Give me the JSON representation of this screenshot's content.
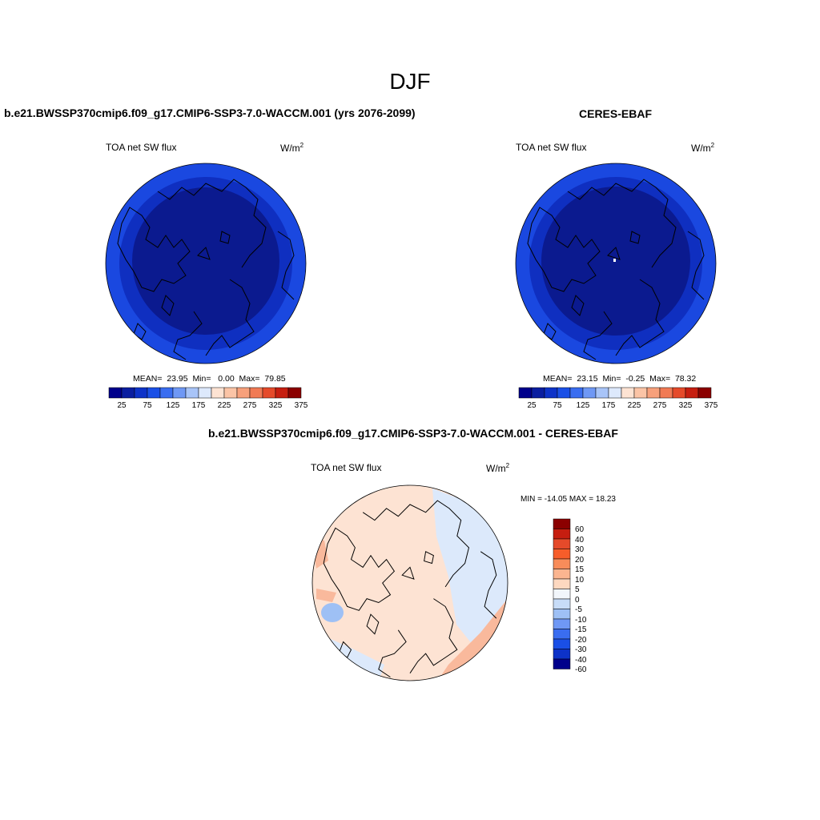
{
  "figure": {
    "title": "DJF"
  },
  "panels": [
    {
      "title": "b.e21.BWSSP370cmip6.f09_g17.CMIP6-SSP3-7.0-WACCM.001 (yrs 2076-2099)",
      "variable": "TOA net SW flux",
      "units": "W/m",
      "units_exp": "2",
      "stats": {
        "mean_label": "MEAN=",
        "mean": "23.95",
        "min_label": "Min=",
        "min": "0.00",
        "max_label": "Max=",
        "max": "79.85"
      }
    },
    {
      "title": "CERES-EBAF",
      "variable": "TOA net SW flux",
      "units": "W/m",
      "units_exp": "2",
      "stats": {
        "mean_label": "MEAN=",
        "mean": "23.15",
        "min_label": "Min=",
        "min": "-0.25",
        "max_label": "Max=",
        "max": "78.32"
      }
    },
    {
      "title": "b.e21.BWSSP370cmip6.f09_g17.CMIP6-SSP3-7.0-WACCM.001 - CERES-EBAF",
      "variable": "TOA net SW flux",
      "units": "W/m",
      "units_exp": "2",
      "stats_text": "MIN = -14.05 MAX =  18.23"
    }
  ],
  "colorbar_top": {
    "ticks": [
      "25",
      "75",
      "125",
      "175",
      "225",
      "275",
      "325",
      "375"
    ],
    "colors": [
      "#00008b",
      "#0a1ea0",
      "#0d32c8",
      "#1a4fe6",
      "#3a6df0",
      "#6f98f5",
      "#a8c4f8",
      "#dde9fc",
      "#fde3d3",
      "#fbc4a6",
      "#f7a07b",
      "#f17a54",
      "#e54a2a",
      "#c61e10",
      "#8b0000"
    ]
  },
  "colorbar_diff": {
    "labels": [
      "60",
      "40",
      "30",
      "20",
      "15",
      "10",
      "5",
      "0",
      "-5",
      "-10",
      "-15",
      "-20",
      "-30",
      "-40",
      "-60"
    ],
    "colors": [
      "#8b0000",
      "#c61e10",
      "#e54a2a",
      "#f75d2a",
      "#f88c5a",
      "#fbb590",
      "#fdd8c0",
      "#f2f6fb",
      "#c7dcf8",
      "#9ec0f5",
      "#6f98f5",
      "#3a6df0",
      "#1a4fe6",
      "#0d32c8",
      "#00008b"
    ]
  },
  "map_colors": {
    "deep": "#0b1a8f",
    "mid": "#0f2fc0",
    "outer": "#1a48e0",
    "diff_warm": "#fde3d3",
    "diff_cool": "#dce9fb",
    "diff_warmer": "#f9b99c",
    "diff_cooler": "#9ec0f5"
  }
}
